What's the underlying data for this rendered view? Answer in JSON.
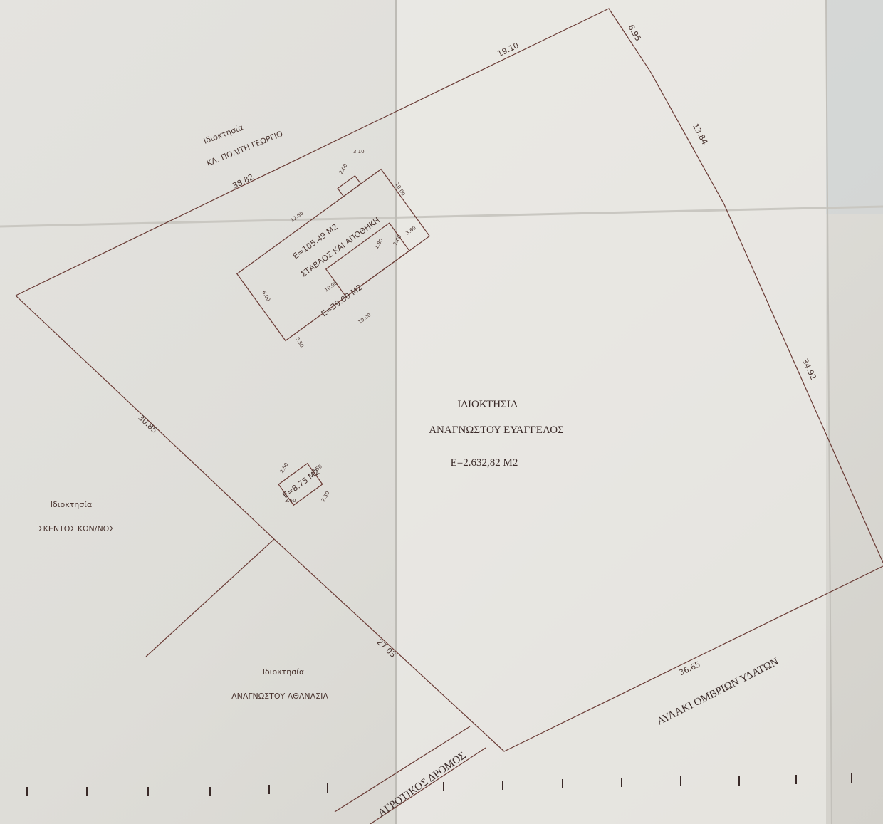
{
  "owners": {
    "north": {
      "label": "Ιδιοκτησία",
      "name": "ΚΛ. ΠΟΛΙΤΗ ΓΕΩΡΓΙΟ"
    },
    "west": {
      "label": "Ιδιοκτησία",
      "name": "ΣΚΕΝΤΟΣ ΚΩΝ/ΝΟΣ"
    },
    "south": {
      "label": "Ιδιοκτησία",
      "name": "ΑΝΑΓΝΩΣΤΟΥ ΑΘΑΝΑΣΙΑ"
    }
  },
  "parcel": {
    "title": "ΙΔΙΟΚΤΗΣΙΑ",
    "owner": "ΑΝΑΓΝΩΣΤΟΥ ΕΥΑΓΓΕΛΟΣ",
    "area": "E=2.632,82 M2"
  },
  "boundaries": [
    "38.82",
    "19.10",
    "6.95",
    "13.84",
    "34.92",
    "36.65",
    "27.03",
    "30.85"
  ],
  "buildings": {
    "main_area": "E=105.49 M2",
    "main_use": "ΣΤΑΒΛΟΣ ΚΑΙ ΑΠΟΘΗΚΗ",
    "annex_area": "E=39.00 M2",
    "small_area": "E=8.75 M2",
    "dims": [
      "3.10",
      "2.00",
      "10.00",
      "12.60",
      "1.80",
      "1.60",
      "3.60",
      "6.00",
      "3.50",
      "10.00",
      "10.00",
      "2.50",
      "3.50",
      "3.50",
      "2.50"
    ]
  },
  "roads": {
    "farm_road": "ΑΓΡΟΤΙΚΟΣ ΔΡΟΜΟΣ",
    "ditch": "ΑΥΛΑΚΙ ΟΜΒΡΙΩΝ ΥΔΑΤΩΝ"
  }
}
